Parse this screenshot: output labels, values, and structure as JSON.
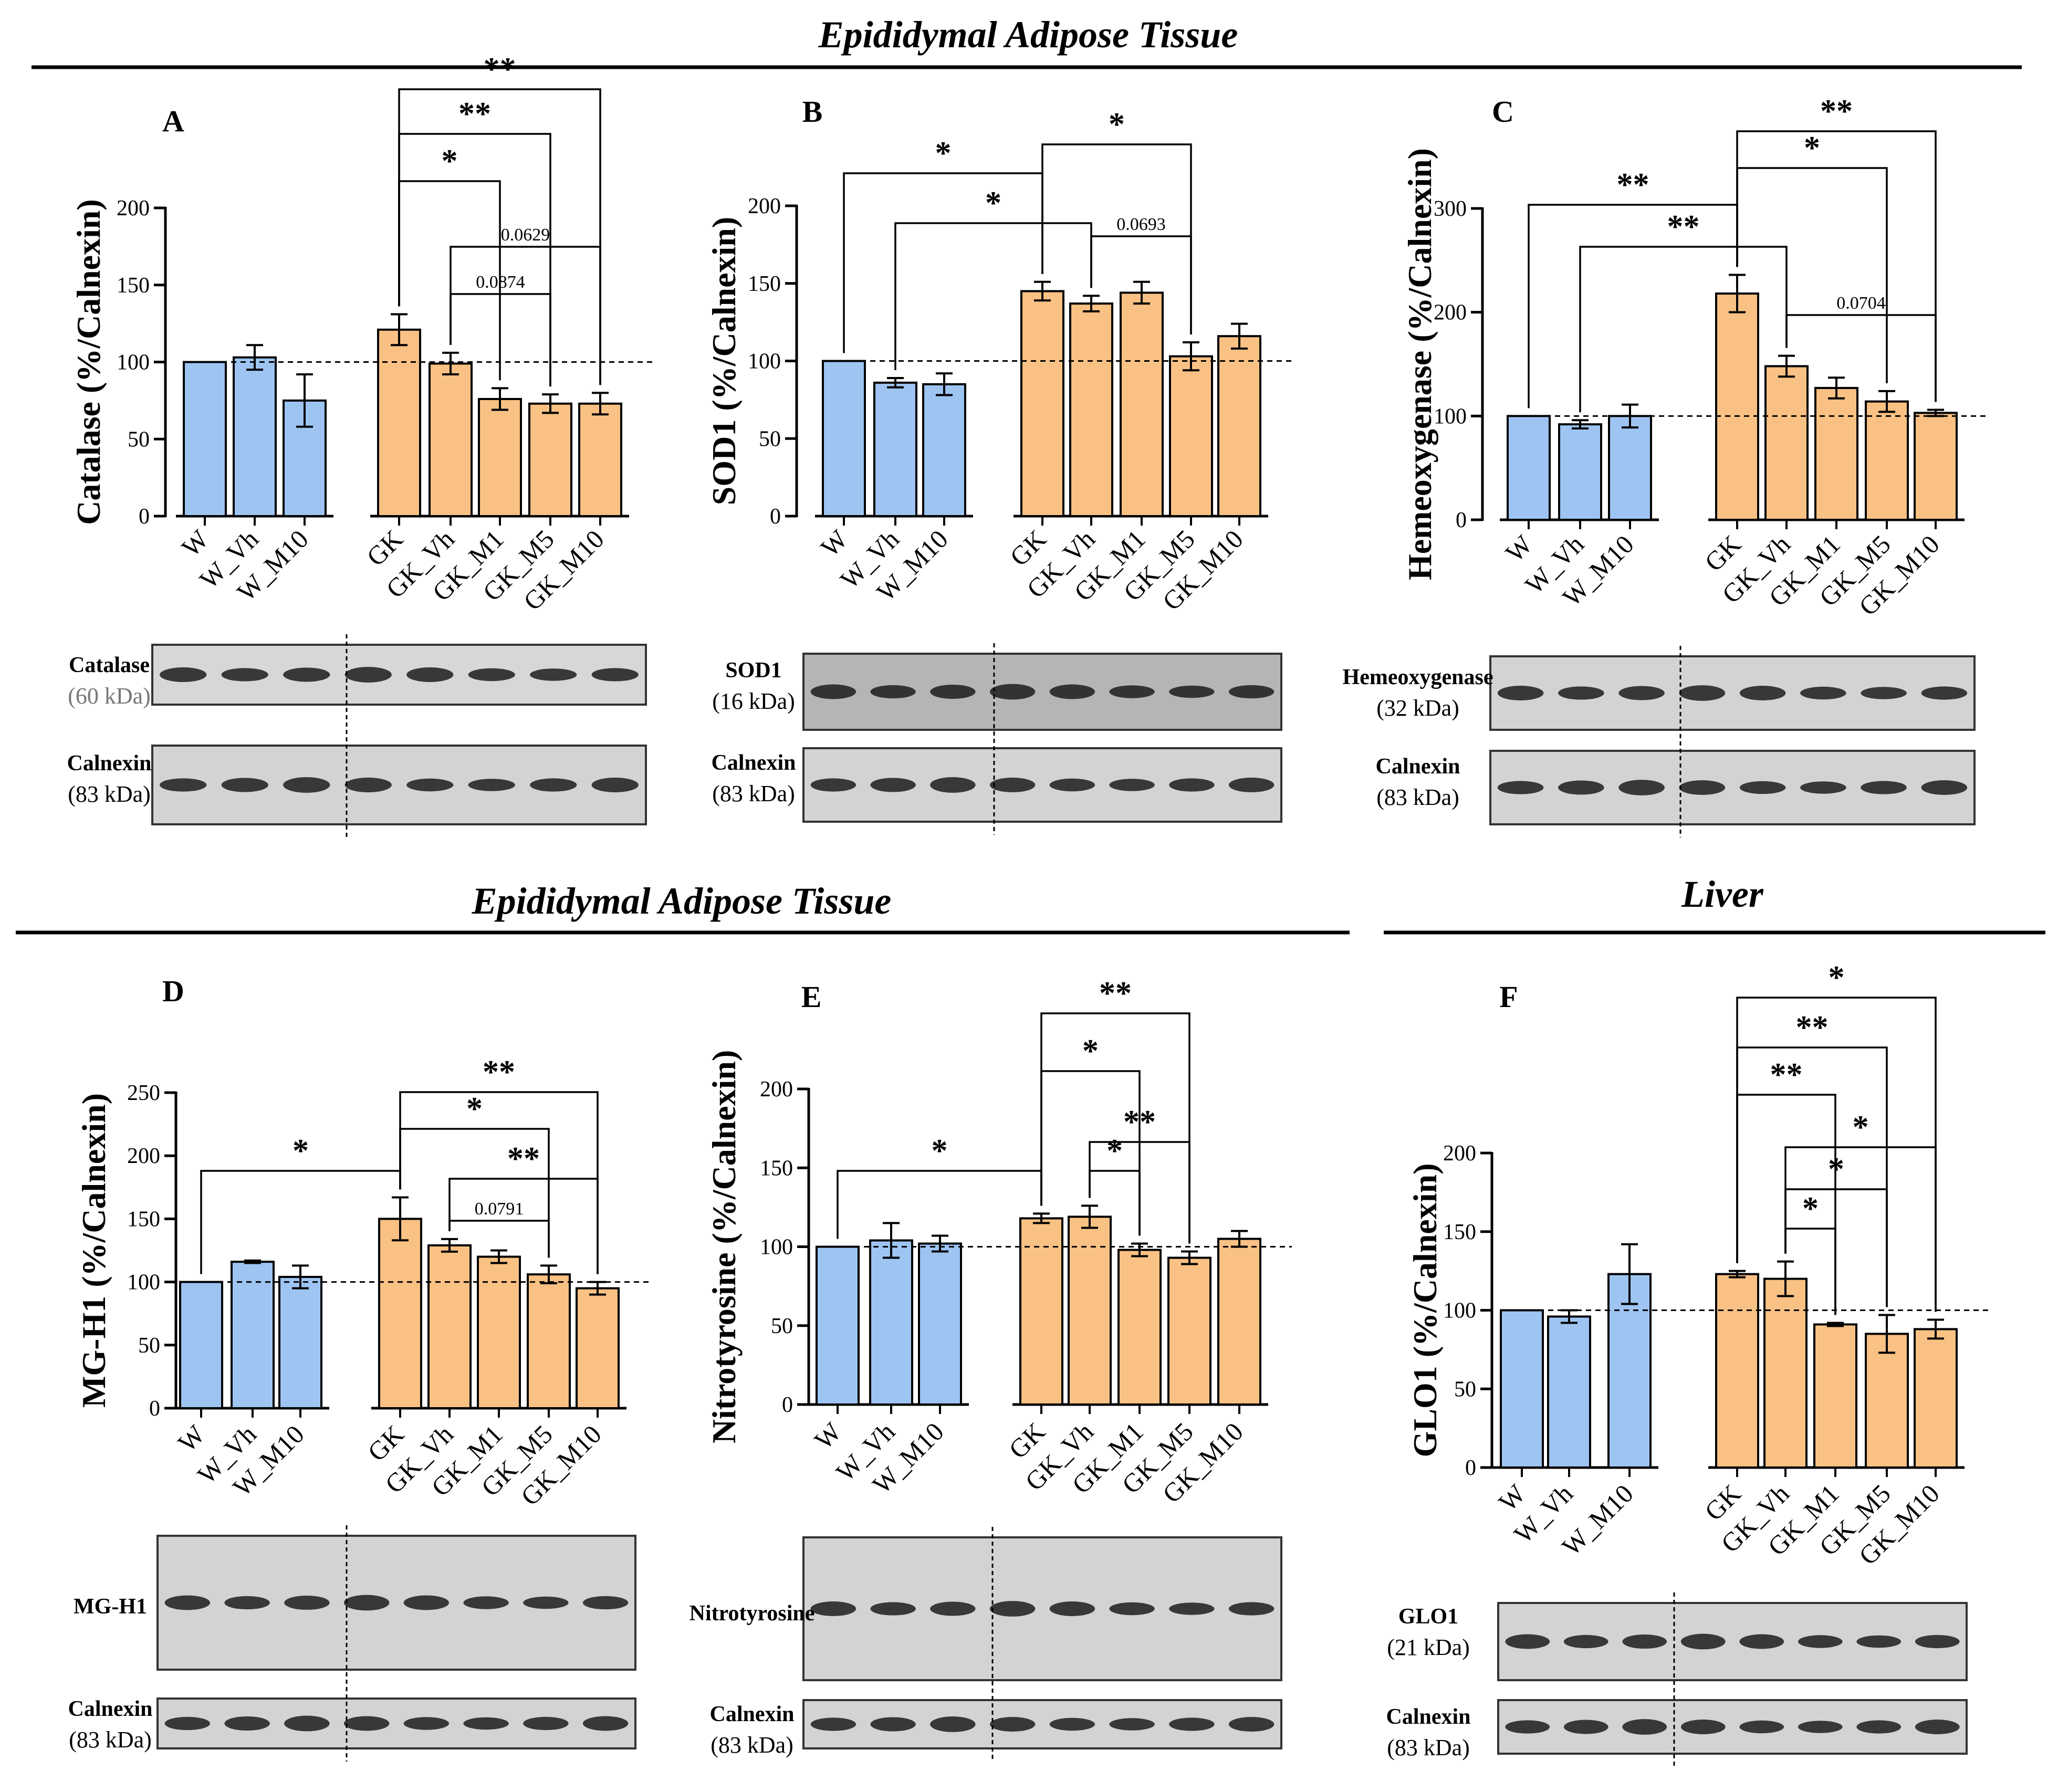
{
  "colors": {
    "W": "#9ec4f2",
    "GK": "#f9c184",
    "line": "#000000",
    "dash": "#000000"
  },
  "sections": [
    {
      "id": "sec-top",
      "title": "Epididymal Adipose Tissue"
    },
    {
      "id": "sec-bottom-left",
      "title": "Epididymal Adipose Tissue"
    },
    {
      "id": "sec-bottom-right",
      "title": "Liver"
    }
  ],
  "chart_data": [
    {
      "panel": "A",
      "type": "bar",
      "ylabel": "Catalase (%/Calnexin)",
      "ylim": [
        0,
        200
      ],
      "yticks": [
        0,
        50,
        100,
        150,
        200
      ],
      "reference_line": 100,
      "categories": [
        "W",
        "W_Vh",
        "W_M10",
        "GK",
        "GK_Vh",
        "GK_M1",
        "GK_M5",
        "GK_M10"
      ],
      "groups": [
        "W",
        "W",
        "W",
        "GK",
        "GK",
        "GK",
        "GK",
        "GK"
      ],
      "values": [
        100,
        103,
        75,
        121,
        99,
        76,
        73,
        73
      ],
      "errors": [
        0,
        8,
        17,
        10,
        7,
        7,
        6,
        7
      ],
      "comparisons": [
        {
          "from": 3,
          "to": 7,
          "label": "**"
        },
        {
          "from": 3,
          "to": 6,
          "label": "**"
        },
        {
          "from": 3,
          "to": 5,
          "label": "*"
        },
        {
          "from": 4,
          "to": 7,
          "label": "0.0629"
        },
        {
          "from": 4,
          "to": 6,
          "label": "0.0874"
        }
      ],
      "blots": [
        {
          "name": "Catalase",
          "kda": "(60 kDa)",
          "kda_grey": true
        },
        {
          "name": "Calnexin",
          "kda": "(83 kDa)"
        }
      ]
    },
    {
      "panel": "B",
      "type": "bar",
      "ylabel": "SOD1 (%/Calnexin)",
      "ylim": [
        0,
        200
      ],
      "yticks": [
        0,
        50,
        100,
        150,
        200
      ],
      "reference_line": 100,
      "categories": [
        "W",
        "W_Vh",
        "W_M10",
        "GK",
        "GK_Vh",
        "GK_M1",
        "GK_M5",
        "GK_M10"
      ],
      "groups": [
        "W",
        "W",
        "W",
        "GK",
        "GK",
        "GK",
        "GK",
        "GK"
      ],
      "values": [
        100,
        86,
        85,
        145,
        137,
        144,
        103,
        116
      ],
      "errors": [
        0,
        3,
        7,
        6,
        5,
        7,
        9,
        8
      ],
      "comparisons": [
        {
          "from": 0,
          "to": 3,
          "label": "*"
        },
        {
          "from": 1,
          "to": 4,
          "label": "*"
        },
        {
          "from": 4,
          "to": 6,
          "label": "0.0693"
        },
        {
          "from": 3,
          "to": 6,
          "label": "*"
        }
      ],
      "blots": [
        {
          "name": "SOD1",
          "kda": "(16 kDa)"
        },
        {
          "name": "Calnexin",
          "kda": "(83 kDa)"
        }
      ]
    },
    {
      "panel": "C",
      "type": "bar",
      "ylabel": "Hemeoxygenase (%/Calnexin)",
      "ylim": [
        0,
        300
      ],
      "yticks": [
        0,
        100,
        200,
        300
      ],
      "reference_line": 100,
      "categories": [
        "W",
        "W_Vh",
        "W_M10",
        "GK",
        "GK_Vh",
        "GK_M1",
        "GK_M5",
        "GK_M10"
      ],
      "groups": [
        "W",
        "W",
        "W",
        "GK",
        "GK",
        "GK",
        "GK",
        "GK"
      ],
      "values": [
        100,
        92,
        100,
        218,
        148,
        127,
        114,
        103
      ],
      "errors": [
        0,
        4,
        11,
        18,
        10,
        10,
        10,
        3
      ],
      "comparisons": [
        {
          "from": 3,
          "to": 7,
          "label": "**"
        },
        {
          "from": 3,
          "to": 6,
          "label": "*"
        },
        {
          "from": 0,
          "to": 3,
          "label": "**"
        },
        {
          "from": 1,
          "to": 4,
          "label": "**"
        },
        {
          "from": 4,
          "to": 7,
          "label": "0.0704"
        }
      ],
      "blots": [
        {
          "name": "Hemeoxygenase",
          "kda": "(32 kDa)"
        },
        {
          "name": "Calnexin",
          "kda": "(83 kDa)"
        }
      ]
    },
    {
      "panel": "D",
      "type": "bar",
      "ylabel": "MG-H1 (%/Calnexin)",
      "ylim": [
        0,
        250
      ],
      "yticks": [
        0,
        50,
        100,
        150,
        200,
        250
      ],
      "reference_line": 100,
      "categories": [
        "W",
        "W_Vh",
        "W_M10",
        "GK",
        "GK_Vh",
        "GK_M1",
        "GK_M5",
        "GK_M10"
      ],
      "groups": [
        "W",
        "W",
        "W",
        "GK",
        "GK",
        "GK",
        "GK",
        "GK"
      ],
      "values": [
        100,
        116,
        104,
        150,
        129,
        120,
        106,
        95
      ],
      "errors": [
        0,
        1,
        9,
        17,
        5,
        5,
        7,
        5
      ],
      "comparisons": [
        {
          "from": 3,
          "to": 7,
          "label": "**"
        },
        {
          "from": 3,
          "to": 6,
          "label": "*"
        },
        {
          "from": 0,
          "to": 3,
          "label": "*"
        },
        {
          "from": 4,
          "to": 7,
          "label": "**"
        },
        {
          "from": 4,
          "to": 6,
          "label": "0.0791"
        }
      ],
      "blots": [
        {
          "name": "MG-H1",
          "kda": ""
        },
        {
          "name": "Calnexin",
          "kda": "(83 kDa)"
        }
      ]
    },
    {
      "panel": "E",
      "type": "bar",
      "ylabel": "Nitrotyrosine (%/Calnexin)",
      "ylim": [
        0,
        200
      ],
      "yticks": [
        0,
        50,
        100,
        150,
        200
      ],
      "reference_line": 100,
      "categories": [
        "W",
        "W_Vh",
        "W_M10",
        "GK",
        "GK_Vh",
        "GK_M1",
        "GK_M5",
        "GK_M10"
      ],
      "groups": [
        "W",
        "W",
        "W",
        "GK",
        "GK",
        "GK",
        "GK",
        "GK"
      ],
      "values": [
        100,
        104,
        102,
        118,
        119,
        98,
        93,
        105
      ],
      "errors": [
        0,
        11,
        5,
        3,
        7,
        4,
        4,
        5
      ],
      "comparisons": [
        {
          "from": 3,
          "to": 6,
          "label": "**"
        },
        {
          "from": 3,
          "to": 5,
          "label": "*"
        },
        {
          "from": 0,
          "to": 3,
          "label": "*"
        },
        {
          "from": 4,
          "to": 6,
          "label": "**"
        },
        {
          "from": 4,
          "to": 5,
          "label": "*"
        }
      ],
      "blots": [
        {
          "name": "Nitrotyrosine",
          "kda": ""
        },
        {
          "name": "Calnexin",
          "kda": "(83 kDa)"
        }
      ]
    },
    {
      "panel": "F",
      "type": "bar",
      "ylabel": "GLO1 (%/Calnexin)",
      "ylim": [
        0,
        200
      ],
      "yticks": [
        0,
        50,
        100,
        150,
        200
      ],
      "reference_line": 100,
      "categories": [
        "W",
        "W_Vh",
        "W_M10",
        "GK",
        "GK_Vh",
        "GK_M1",
        "GK_M5",
        "GK_M10"
      ],
      "groups": [
        "W",
        "W",
        "W",
        "GK",
        "GK",
        "GK",
        "GK",
        "GK"
      ],
      "values": [
        100,
        96,
        123,
        123,
        120,
        91,
        85,
        88
      ],
      "errors": [
        0,
        4,
        19,
        2,
        11,
        1,
        12,
        6
      ],
      "comparisons": [
        {
          "from": 3,
          "to": 7,
          "label": "*"
        },
        {
          "from": 3,
          "to": 6,
          "label": "**"
        },
        {
          "from": 3,
          "to": 5,
          "label": "**"
        },
        {
          "from": 4,
          "to": 7,
          "label": "*"
        },
        {
          "from": 4,
          "to": 6,
          "label": "*"
        },
        {
          "from": 4,
          "to": 5,
          "label": "*"
        }
      ],
      "blots": [
        {
          "name": "GLO1",
          "kda": "(21 kDa)"
        },
        {
          "name": "Calnexin",
          "kda": "(83 kDa)"
        }
      ]
    }
  ]
}
